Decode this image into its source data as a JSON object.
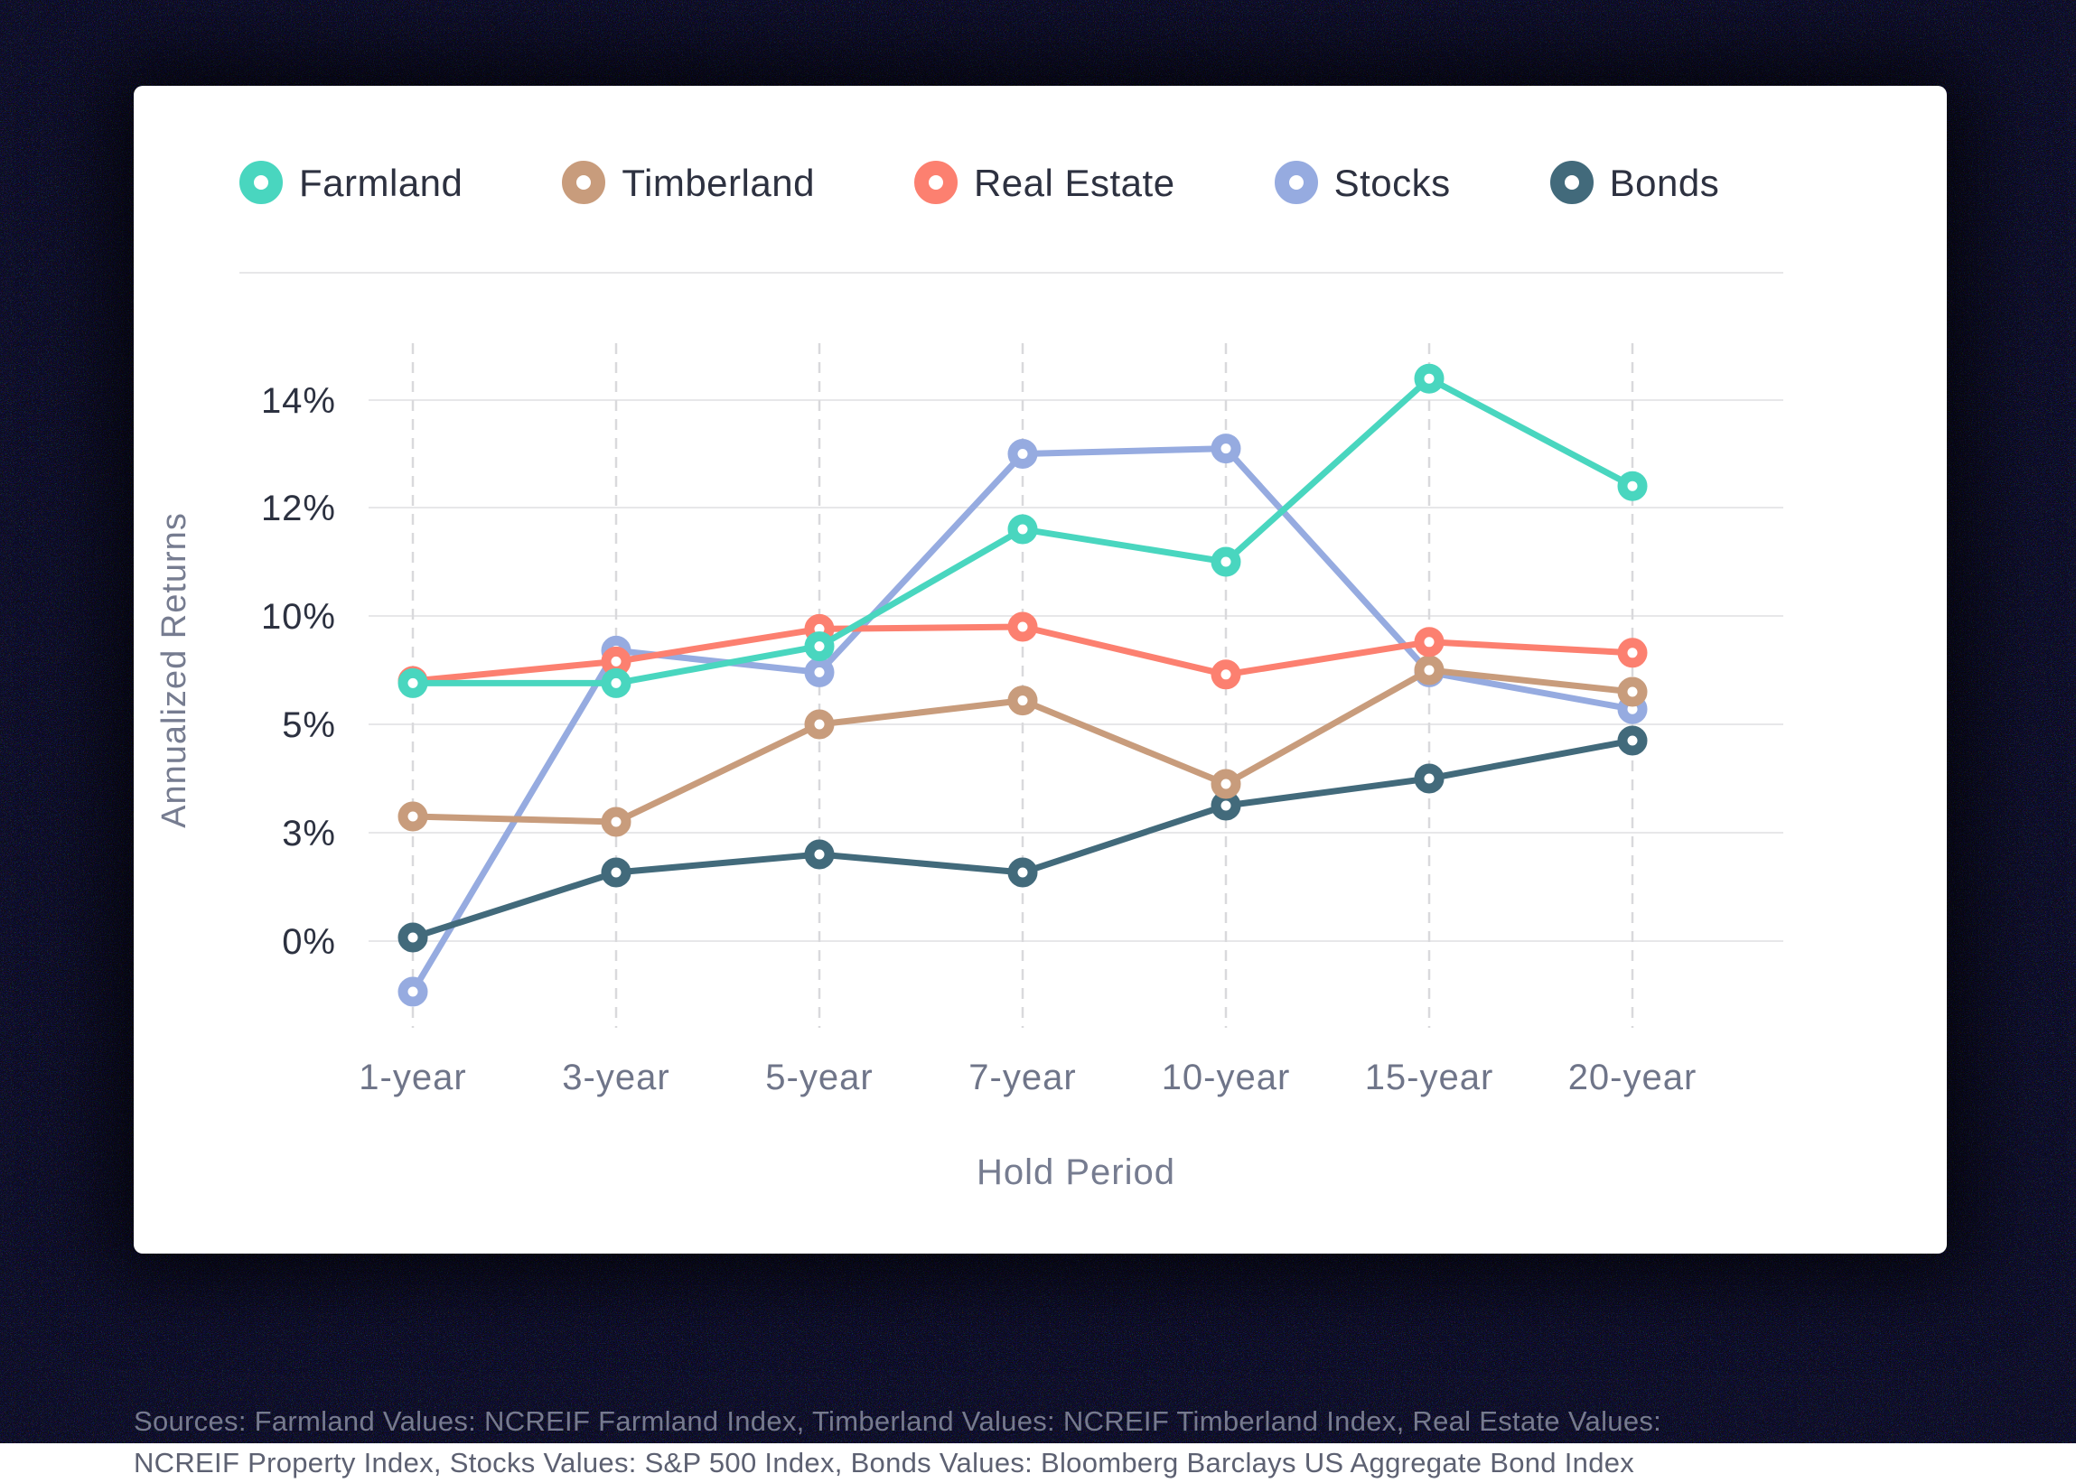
{
  "page": {
    "background_color": "#0d0d12",
    "card_color": "#ffffff"
  },
  "legend": {
    "items": [
      "Farmland",
      "Timberland",
      "Real Estate",
      "Stocks",
      "Bonds"
    ]
  },
  "chart_data": {
    "type": "line",
    "title": "",
    "xlabel": "Hold Period",
    "ylabel": "Annualized Returns",
    "categories": [
      "1-year",
      "3-year",
      "5-year",
      "7-year",
      "10-year",
      "15-year",
      "20-year"
    ],
    "series": [
      {
        "name": "Farmland",
        "color": "#49d6bf",
        "values": [
          6.9,
          6.9,
          8.6,
          11.6,
          11.0,
          14.4,
          12.4
        ]
      },
      {
        "name": "Timberland",
        "color": "#c89c7c",
        "values": [
          3.3,
          3.2,
          5.0,
          6.1,
          3.9,
          7.5,
          6.5
        ]
      },
      {
        "name": "Real Estate",
        "color": "#fc8070",
        "values": [
          7.0,
          7.9,
          9.4,
          9.5,
          7.3,
          8.8,
          8.3
        ]
      },
      {
        "name": "Stocks",
        "color": "#96abe0",
        "values": [
          -1.4,
          8.4,
          7.4,
          13.0,
          13.1,
          7.4,
          5.7
        ]
      },
      {
        "name": "Bonds",
        "color": "#426a7b",
        "values": [
          0.1,
          1.9,
          2.4,
          1.9,
          3.5,
          4.0,
          4.7
        ]
      }
    ],
    "draw_order": [
      "Stocks",
      "Bonds",
      "Timberland",
      "Real Estate",
      "Farmland"
    ],
    "y_axis": {
      "ticks": [
        {
          "label": "14%",
          "value": 14
        },
        {
          "label": "12%",
          "value": 12
        },
        {
          "label": "10%",
          "value": 10
        },
        {
          "label": "5%",
          "value": 5
        },
        {
          "label": "3%",
          "value": 3
        },
        {
          "label": "0%",
          "value": 0
        }
      ],
      "note": "tick values 0,3,5,10,12,14 are rendered with equal visual spacing (non-linear scale as in source image)"
    },
    "grid": {
      "horizontal": "solid",
      "vertical": "dashed"
    },
    "legend_position": "top-left",
    "marker_style": "donut"
  },
  "footnote": {
    "line1": "Sources: Farmland Values: NCREIF Farmland Index, Timberland Values: NCREIF Timberland Index, Real Estate Values:",
    "line2": "NCREIF Property Index, Stocks Values: S&P 500 Index, Bonds Values: Bloomberg Barclays US Aggregate Bond Index"
  }
}
